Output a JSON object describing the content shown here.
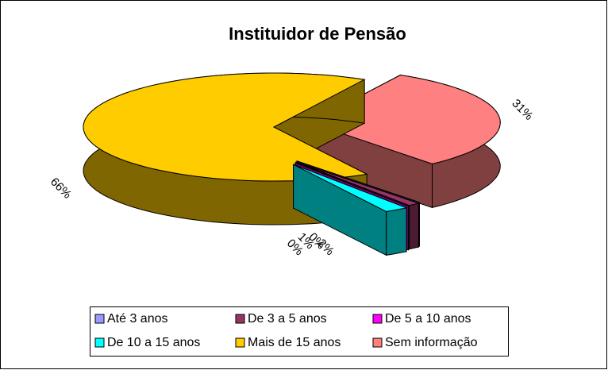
{
  "chart_data": {
    "type": "pie3d",
    "title": "Instituidor de Pensão",
    "categories": [
      "Até 3 anos",
      "De 3 a 5 anos",
      "De 5 a 10 anos",
      "De 10 a 15 anos",
      "Mais de 15 anos",
      "Sem informação"
    ],
    "values": [
      0,
      1,
      0,
      2,
      66,
      31
    ],
    "value_labels": [
      "0%",
      "1%",
      "0%",
      "2%",
      "66%",
      "31%"
    ],
    "colors": [
      "#9999ff",
      "#993366",
      "#ff00ff",
      "#00ffff",
      "#ffcc00",
      "#ff8080"
    ],
    "legend": "bottom"
  }
}
